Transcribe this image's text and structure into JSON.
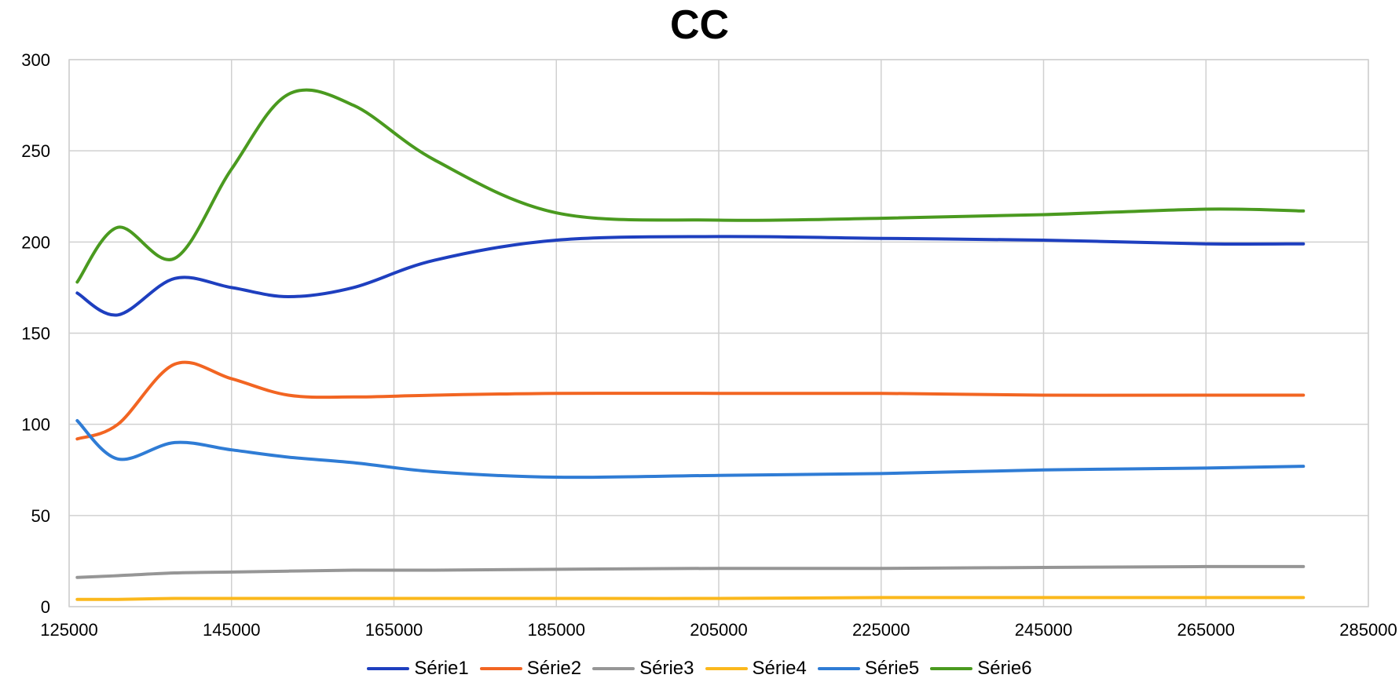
{
  "chart_data": {
    "type": "line",
    "title": "CC",
    "xlabel": "",
    "ylabel": "",
    "xlim": [
      125000,
      285000
    ],
    "ylim": [
      0,
      300
    ],
    "xticks": [
      125000,
      145000,
      165000,
      185000,
      205000,
      225000,
      245000,
      265000,
      285000
    ],
    "yticks": [
      0,
      50,
      100,
      150,
      200,
      250,
      300
    ],
    "grid": true,
    "legend_position": "bottom",
    "x": [
      126000,
      131000,
      138000,
      145000,
      152000,
      160000,
      170000,
      185000,
      205000,
      225000,
      245000,
      265000,
      277000
    ],
    "series": [
      {
        "name": "Série1",
        "color": "#1E3FBF",
        "values": [
          172,
          160,
          180,
          175,
          170,
          175,
          190,
          201,
          203,
          202,
          201,
          199,
          199
        ]
      },
      {
        "name": "Série2",
        "color": "#F26522",
        "values": [
          92,
          100,
          133,
          125,
          116,
          115,
          116,
          117,
          117,
          117,
          116,
          116,
          116
        ]
      },
      {
        "name": "Série3",
        "color": "#969696",
        "values": [
          16,
          17,
          18.5,
          19,
          19.5,
          20,
          20,
          20.5,
          21,
          21,
          21.5,
          22,
          22
        ]
      },
      {
        "name": "Série4",
        "color": "#FBB81C",
        "values": [
          4,
          4,
          4.5,
          4.5,
          4.5,
          4.5,
          4.5,
          4.5,
          4.5,
          5,
          5,
          5,
          5
        ]
      },
      {
        "name": "Série5",
        "color": "#2F7CD5",
        "values": [
          102,
          81,
          90,
          86,
          82,
          79,
          74,
          71,
          72,
          73,
          75,
          76,
          77
        ]
      },
      {
        "name": "Série6",
        "color": "#4A9A1F",
        "values": [
          178,
          208,
          191,
          240,
          281,
          275,
          245,
          216,
          212,
          213,
          215,
          218,
          217
        ]
      }
    ]
  }
}
